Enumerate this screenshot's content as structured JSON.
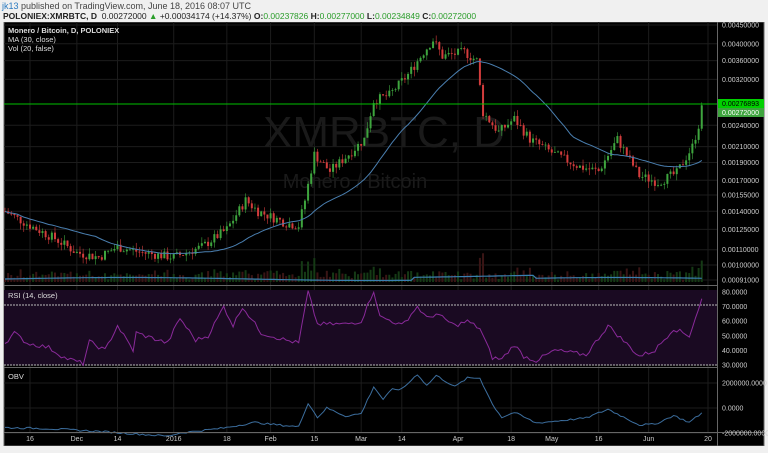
{
  "header": {
    "user": "jk13",
    "published": "published on TradingView.com, June 18, 2016 08:07 UTC",
    "symbol": "POLONIEX:XMRBTC, D",
    "last": "0.00272000",
    "change": "+0.00034174 (+14.37%)",
    "open_label": "O:",
    "open": "0.00237826",
    "high_label": "H:",
    "high": "0.00277000",
    "low_label": "L:",
    "low": "0.00234849",
    "close_label": "C:",
    "close": "0.00272000"
  },
  "legend": {
    "title": "Monero / Bitcoin, D, POLONIEX",
    "ma": "MA (30, close)",
    "vol": "Vol (20, false)",
    "rsi": "RSI (14, close)",
    "obv": "OBV"
  },
  "watermark": {
    "symbol": "XMRBTC, D",
    "name": "Monero / Bitcoin"
  },
  "colors": {
    "up": "#3ea53e",
    "down": "#d33c3c",
    "ma": "#4a7fb0",
    "rsi": "#8a2a9a",
    "obv": "#3c6e9e",
    "price_line": "#00c000",
    "background": "#000000"
  },
  "chart_data": [
    {
      "type": "candlestick",
      "scale": "log",
      "ylim": [
        0.00091,
        0.0045
      ],
      "y_ticks": [
        "0.00450000",
        "0.00400000",
        "0.00360000",
        "0.00320000",
        "0.00240000",
        "0.00210000",
        "0.00190000",
        "0.00170000",
        "0.00155000",
        "0.00140000",
        "0.00125000",
        "0.00110000",
        "0.00100000",
        "0.00091000"
      ],
      "price_labels": {
        "high_line": "0.00276893",
        "last": "0.00272000"
      },
      "x_ticks": [
        {
          "label": "16",
          "date": "2015-11-16"
        },
        {
          "label": "Dec",
          "date": "2015-12-01"
        },
        {
          "label": "14",
          "date": "2015-12-14"
        },
        {
          "label": "2016",
          "date": "2016-01-01"
        },
        {
          "label": "18",
          "date": "2016-01-18"
        },
        {
          "label": "Feb",
          "date": "2016-02-01"
        },
        {
          "label": "15",
          "date": "2016-02-15"
        },
        {
          "label": "Mar",
          "date": "2016-03-01"
        },
        {
          "label": "14",
          "date": "2016-03-14"
        },
        {
          "label": "Apr",
          "date": "2016-04-01"
        },
        {
          "label": "18",
          "date": "2016-04-18"
        },
        {
          "label": "May",
          "date": "2016-05-01"
        },
        {
          "label": "16",
          "date": "2016-05-16"
        },
        {
          "label": "Jun",
          "date": "2016-06-01"
        },
        {
          "label": "20",
          "date": "2016-06-20"
        }
      ],
      "closes": [
        [
          "2015-11-08",
          0.0014
        ],
        [
          "2015-11-16",
          0.00128
        ],
        [
          "2015-11-24",
          0.00118
        ],
        [
          "2015-12-01",
          0.00108
        ],
        [
          "2015-12-08",
          0.00105
        ],
        [
          "2015-12-14",
          0.00112
        ],
        [
          "2015-12-22",
          0.00108
        ],
        [
          "2016-01-01",
          0.00105
        ],
        [
          "2016-01-10",
          0.00112
        ],
        [
          "2016-01-18",
          0.00125
        ],
        [
          "2016-01-24",
          0.0015
        ],
        [
          "2016-01-28",
          0.0014
        ],
        [
          "2016-02-06",
          0.0013
        ],
        [
          "2016-02-10",
          0.00128
        ],
        [
          "2016-02-12",
          0.0015
        ],
        [
          "2016-02-15",
          0.002
        ],
        [
          "2016-02-20",
          0.0018
        ],
        [
          "2016-02-26",
          0.002
        ],
        [
          "2016-03-02",
          0.0022
        ],
        [
          "2016-03-05",
          0.0028
        ],
        [
          "2016-03-10",
          0.0029
        ],
        [
          "2016-03-16",
          0.0033
        ],
        [
          "2016-03-21",
          0.0038
        ],
        [
          "2016-03-24",
          0.0041
        ],
        [
          "2016-03-27",
          0.0037
        ],
        [
          "2016-04-03",
          0.0038
        ],
        [
          "2016-04-07",
          0.0036
        ],
        [
          "2016-04-09",
          0.0026
        ],
        [
          "2016-04-14",
          0.0023
        ],
        [
          "2016-04-19",
          0.0025
        ],
        [
          "2016-04-24",
          0.0022
        ],
        [
          "2016-05-02",
          0.002
        ],
        [
          "2016-05-10",
          0.00185
        ],
        [
          "2016-05-16",
          0.0018
        ],
        [
          "2016-05-22",
          0.0022
        ],
        [
          "2016-05-29",
          0.00175
        ],
        [
          "2016-06-04",
          0.00168
        ],
        [
          "2016-06-10",
          0.00178
        ],
        [
          "2016-06-15",
          0.0021
        ],
        [
          "2016-06-17",
          0.0024
        ],
        [
          "2016-06-18",
          0.00272
        ]
      ]
    },
    {
      "type": "line",
      "name": "RSI (14, close)",
      "ylim": [
        30,
        80
      ],
      "y_ticks": [
        "80.0000",
        "70.0000",
        "60.0000",
        "50.0000",
        "40.0000",
        "30.0000"
      ],
      "bands": [
        30,
        70
      ],
      "points": [
        [
          "2015-11-08",
          45
        ],
        [
          "2015-11-11",
          52
        ],
        [
          "2015-11-15",
          45
        ],
        [
          "2015-11-22",
          42
        ],
        [
          "2015-11-27",
          35
        ],
        [
          "2015-12-03",
          31
        ],
        [
          "2015-12-05",
          46
        ],
        [
          "2015-12-10",
          40
        ],
        [
          "2015-12-14",
          57
        ],
        [
          "2015-12-19",
          40
        ],
        [
          "2015-12-20",
          52
        ],
        [
          "2015-12-30",
          45
        ],
        [
          "2016-01-03",
          62
        ],
        [
          "2016-01-08",
          47
        ],
        [
          "2016-01-12",
          50
        ],
        [
          "2016-01-17",
          70
        ],
        [
          "2016-01-20",
          57
        ],
        [
          "2016-01-23",
          70
        ],
        [
          "2016-01-29",
          52
        ],
        [
          "2016-02-06",
          47
        ],
        [
          "2016-02-10",
          45
        ],
        [
          "2016-02-13",
          80
        ],
        [
          "2016-02-16",
          58
        ],
        [
          "2016-02-25",
          58
        ],
        [
          "2016-03-01",
          60
        ],
        [
          "2016-03-05",
          81
        ],
        [
          "2016-03-07",
          63
        ],
        [
          "2016-03-11",
          60
        ],
        [
          "2016-03-14",
          57
        ],
        [
          "2016-03-19",
          70
        ],
        [
          "2016-03-22",
          62
        ],
        [
          "2016-03-25",
          65
        ],
        [
          "2016-03-31",
          57
        ],
        [
          "2016-04-04",
          60
        ],
        [
          "2016-04-08",
          55
        ],
        [
          "2016-04-10",
          45
        ],
        [
          "2016-04-12",
          35
        ],
        [
          "2016-04-15",
          34
        ],
        [
          "2016-04-19",
          44
        ],
        [
          "2016-04-22",
          36
        ],
        [
          "2016-04-26",
          33
        ],
        [
          "2016-05-02",
          40
        ],
        [
          "2016-05-12",
          37
        ],
        [
          "2016-05-19",
          57
        ],
        [
          "2016-05-29",
          36
        ],
        [
          "2016-06-03",
          40
        ],
        [
          "2016-06-09",
          55
        ],
        [
          "2016-06-14",
          50
        ],
        [
          "2016-06-18",
          75
        ]
      ]
    },
    {
      "type": "line",
      "name": "OBV",
      "ylim": [
        -2600000,
        3200000
      ],
      "y_ticks": [
        "2000000.0000",
        "0.0000",
        "-2000000.0000"
      ],
      "points": [
        [
          "2015-11-08",
          -1570000
        ],
        [
          "2015-11-22",
          -1650000
        ],
        [
          "2015-12-10",
          -1900000
        ],
        [
          "2015-12-30",
          -2250000
        ],
        [
          "2016-01-03",
          -2000000
        ],
        [
          "2016-01-17",
          -1600000
        ],
        [
          "2016-01-27",
          -1150000
        ],
        [
          "2016-02-01",
          -1300000
        ],
        [
          "2016-02-10",
          -1500000
        ],
        [
          "2016-02-13",
          400000
        ],
        [
          "2016-02-16",
          -750000
        ],
        [
          "2016-02-19",
          0
        ],
        [
          "2016-02-25",
          -650000
        ],
        [
          "2016-03-01",
          -450000
        ],
        [
          "2016-03-05",
          1700000
        ],
        [
          "2016-03-08",
          700000
        ],
        [
          "2016-03-11",
          1500000
        ],
        [
          "2016-03-14",
          1500000
        ],
        [
          "2016-03-19",
          2700000
        ],
        [
          "2016-03-22",
          1800000
        ],
        [
          "2016-03-25",
          2600000
        ],
        [
          "2016-03-31",
          1700000
        ],
        [
          "2016-04-04",
          2400000
        ],
        [
          "2016-04-08",
          2400000
        ],
        [
          "2016-04-12",
          300000
        ],
        [
          "2016-04-15",
          -750000
        ],
        [
          "2016-04-19",
          -350000
        ],
        [
          "2016-04-26",
          -1200000
        ],
        [
          "2016-05-12",
          -800000
        ],
        [
          "2016-05-19",
          -100000
        ],
        [
          "2016-05-29",
          -1350000
        ],
        [
          "2016-06-03",
          -1300000
        ],
        [
          "2016-06-09",
          -600000
        ],
        [
          "2016-06-14",
          -1150000
        ],
        [
          "2016-06-18",
          -400000
        ]
      ]
    }
  ]
}
